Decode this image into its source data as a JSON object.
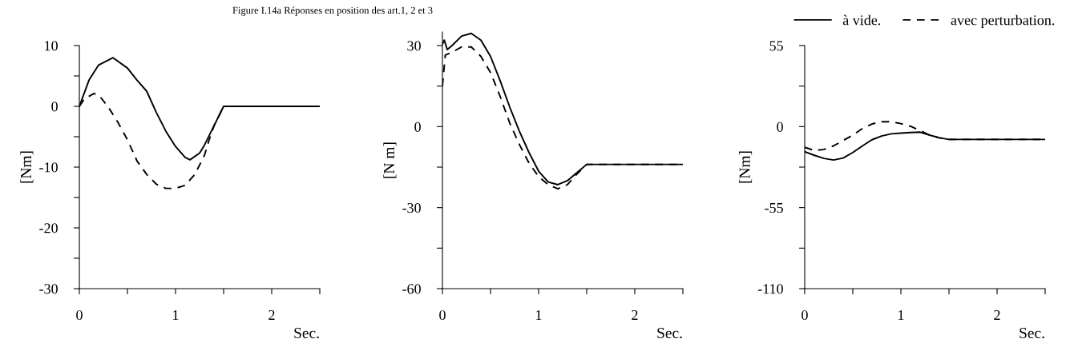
{
  "chart_data": [
    {
      "type": "line",
      "title": "Figure I.14a Réponses en position des art.1, 2 et 3",
      "xlabel": "Sec.",
      "ylabel": "[Nm]",
      "xlim": [
        0,
        2.5
      ],
      "xticks": [
        0,
        {
          "value": 0.5,
          "label": null
        },
        1,
        {
          "value": 1.5,
          "label": null
        },
        2,
        {
          "value": 2.5,
          "label": null
        }
      ],
      "ylim": [
        -30,
        10
      ],
      "yticks": [
        -30,
        {
          "value": -25,
          "label": null
        },
        -20,
        {
          "value": -15,
          "label": null
        },
        -10,
        {
          "value": -5,
          "label": null
        },
        0,
        {
          "value": 5,
          "label": null
        },
        10
      ],
      "grid": false,
      "legend": false,
      "series": [
        {
          "color": "#000000",
          "line_style": "solid",
          "x": [
            0,
            0.1,
            0.2,
            0.35,
            0.5,
            0.6,
            0.7,
            0.8,
            0.9,
            1.0,
            1.1,
            1.15,
            1.25,
            1.3,
            1.4,
            1.5,
            2.5
          ],
          "values": [
            0,
            4.3,
            6.8,
            8,
            6.3,
            4.3,
            2.5,
            -1,
            -4.1,
            -6.6,
            -8.4,
            -8.8,
            -7.7,
            -6.4,
            -3.2,
            0,
            0
          ]
        },
        {
          "color": "#000000",
          "line_style": "dashed",
          "x": [
            0,
            0.05,
            0.15,
            0.2,
            0.3,
            0.4,
            0.5,
            0.6,
            0.7,
            0.8,
            0.9,
            1.0,
            1.1,
            1.2,
            1.3,
            1.35,
            1.4,
            1.5,
            2.5
          ],
          "values": [
            0,
            1.2,
            2.1,
            1.9,
            -0.1,
            -2.6,
            -5.5,
            -9,
            -11.2,
            -12.8,
            -13.5,
            -13.5,
            -13,
            -11.2,
            -8.1,
            -5.5,
            -3.2,
            0,
            0
          ]
        }
      ]
    },
    {
      "type": "line",
      "xlabel": "Sec.",
      "ylabel": "[N m]",
      "xlim": [
        0,
        2.5
      ],
      "xticks": [
        0,
        {
          "value": 0.5,
          "label": null
        },
        1,
        {
          "value": 1.5,
          "label": null
        },
        2,
        {
          "value": 2.5,
          "label": null
        }
      ],
      "ylim": [
        -60,
        35
      ],
      "yticks": [
        -60,
        {
          "value": -45,
          "label": null
        },
        -30,
        {
          "value": -15,
          "label": null
        },
        0,
        {
          "value": 15,
          "label": null
        },
        30
      ],
      "grid": false,
      "legend": false,
      "series": [
        {
          "color": "#000000",
          "line_style": "solid",
          "x": [
            0,
            0.02,
            0.05,
            0.1,
            0.2,
            0.3,
            0.4,
            0.5,
            0.6,
            0.7,
            0.8,
            0.9,
            1.0,
            1.1,
            1.2,
            1.3,
            1.4,
            1.5,
            2.5
          ],
          "values": [
            30.5,
            32,
            28.5,
            30,
            33.5,
            34.5,
            32,
            26,
            17,
            7.2,
            -1.7,
            -9.6,
            -16.5,
            -20.5,
            -21.5,
            -20,
            -17,
            -14,
            -14
          ]
        },
        {
          "color": "#000000",
          "line_style": "dashed",
          "x": [
            0,
            0.03,
            0.1,
            0.2,
            0.3,
            0.4,
            0.5,
            0.6,
            0.7,
            0.8,
            0.9,
            1.0,
            1.1,
            1.2,
            1.3,
            1.4,
            1.5,
            2.5
          ],
          "values": [
            15,
            26.5,
            27.5,
            29.5,
            29.5,
            26,
            20,
            11.2,
            1.3,
            -6.6,
            -13.5,
            -18.5,
            -21.5,
            -23,
            -21.5,
            -17.5,
            -14,
            -14
          ]
        }
      ]
    },
    {
      "type": "line",
      "xlabel": "Sec.",
      "ylabel": "[Nm]",
      "xlim": [
        0,
        2.5
      ],
      "xticks": [
        0,
        {
          "value": 0.5,
          "label": null
        },
        1,
        {
          "value": 1.5,
          "label": null
        },
        2,
        {
          "value": 2.5,
          "label": null
        }
      ],
      "ylim": [
        -110,
        55
      ],
      "yticks": [
        -110,
        {
          "value": -82.5,
          "label": null
        },
        -55,
        {
          "value": -27.5,
          "label": null
        },
        0,
        {
          "value": 27.5,
          "label": null
        },
        55
      ],
      "grid": false,
      "legend": "top",
      "series": [
        {
          "name": "à vide.",
          "color": "#000000",
          "line_style": "solid",
          "x": [
            0,
            0.1,
            0.2,
            0.3,
            0.4,
            0.5,
            0.6,
            0.7,
            0.8,
            0.9,
            1.0,
            1.1,
            1.2,
            1.3,
            1.4,
            1.5,
            2.5
          ],
          "values": [
            -17,
            -19.5,
            -21.6,
            -22.7,
            -21.3,
            -17.6,
            -13.1,
            -8.9,
            -6.4,
            -4.9,
            -4.4,
            -4,
            -3.8,
            -5.8,
            -7.6,
            -8.7,
            -8.7
          ]
        },
        {
          "name": "avec perturbation.",
          "color": "#000000",
          "line_style": "dashed",
          "x": [
            0,
            0.1,
            0.2,
            0.3,
            0.4,
            0.5,
            0.6,
            0.7,
            0.8,
            0.9,
            1.0,
            1.1,
            1.2,
            1.3,
            1.4,
            1.5,
            2.5
          ],
          "values": [
            -14,
            -16.2,
            -15.5,
            -13.1,
            -9.5,
            -5.8,
            -1.3,
            1.8,
            3.3,
            3.3,
            2,
            0.2,
            -2.7,
            -5.8,
            -7.6,
            -8.7,
            -8.7
          ]
        }
      ]
    }
  ]
}
